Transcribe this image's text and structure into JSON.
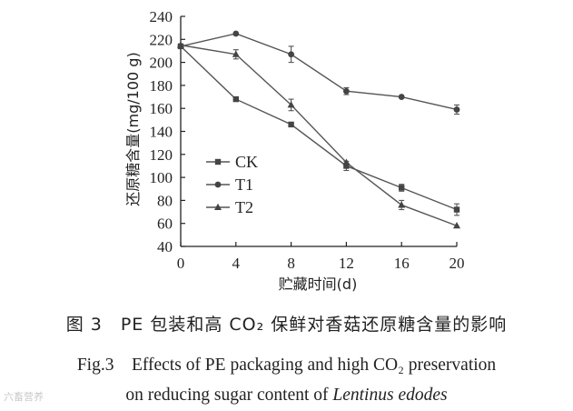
{
  "chart_data": {
    "type": "line",
    "xlabel": "贮藏时间(d)",
    "ylabel": "还原糖含量(mg/100 g)",
    "x": [
      0,
      4,
      8,
      12,
      16,
      20
    ],
    "xlim": [
      0,
      20
    ],
    "ylim": [
      40,
      240
    ],
    "xticks": [
      "0",
      "4",
      "8",
      "12",
      "16",
      "20"
    ],
    "yticks": [
      "40",
      "60",
      "80",
      "100",
      "120",
      "140",
      "160",
      "180",
      "200",
      "220",
      "240"
    ],
    "grid": false,
    "legend_position": "left-center",
    "series": [
      {
        "name": "CK",
        "marker": "square",
        "values": [
          214,
          168,
          146,
          110,
          91,
          72
        ],
        "errors": [
          0,
          0,
          0,
          4,
          3,
          5
        ]
      },
      {
        "name": "T1",
        "marker": "circle",
        "values": [
          214,
          225,
          207,
          175,
          170,
          159
        ],
        "errors": [
          0,
          0,
          7,
          3,
          0,
          4
        ]
      },
      {
        "name": "T2",
        "marker": "triangle",
        "values": [
          215,
          207,
          163,
          113,
          76,
          58
        ],
        "errors": [
          0,
          4,
          5,
          0,
          4,
          0
        ]
      }
    ]
  },
  "caption": {
    "cn": "图 3　PE 包装和高 CO₂ 保鲜对香菇还原糖含量的影响",
    "en_line1": "Fig.3　Effects of PE packaging and high CO₂ preservation",
    "en_line2_prefix": "on reducing sugar content of ",
    "en_line2_italic": "Lentinus edodes"
  },
  "watermark": "六畜营养"
}
